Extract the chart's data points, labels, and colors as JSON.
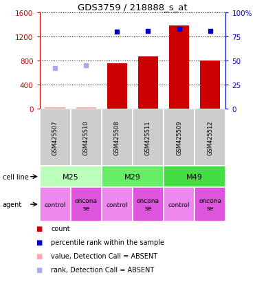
{
  "title": "GDS3759 / 218888_s_at",
  "samples": [
    "GSM425507",
    "GSM425510",
    "GSM425508",
    "GSM425511",
    "GSM425509",
    "GSM425512"
  ],
  "bar_values": [
    28,
    22,
    750,
    870,
    1380,
    800
  ],
  "bar_absent": [
    true,
    true,
    false,
    false,
    false,
    false
  ],
  "dot_values": [
    null,
    null,
    1280,
    1290,
    1320,
    1285
  ],
  "dot_absent_values": [
    680,
    720,
    null,
    null,
    null,
    null
  ],
  "ylim_left": [
    0,
    1600
  ],
  "ylim_right": [
    0,
    100
  ],
  "yticks_left": [
    0,
    400,
    800,
    1200,
    1600
  ],
  "yticks_right": [
    0,
    25,
    50,
    75,
    100
  ],
  "yticklabels_right": [
    "0",
    "25",
    "50",
    "75",
    "100%"
  ],
  "bar_color": "#cc0000",
  "bar_absent_color": "#ffaaaa",
  "dot_color": "#0000cc",
  "dot_absent_color": "#aaaaee",
  "cell_lines": [
    {
      "label": "M25",
      "start": 0,
      "end": 2,
      "color": "#bbffbb"
    },
    {
      "label": "M29",
      "start": 2,
      "end": 4,
      "color": "#66ee66"
    },
    {
      "label": "M49",
      "start": 4,
      "end": 6,
      "color": "#44dd44"
    }
  ],
  "agents": [
    {
      "label": "control",
      "color": "#ee88ee"
    },
    {
      "label": "oncona\nse",
      "color": "#dd55dd"
    },
    {
      "label": "control",
      "color": "#ee88ee"
    },
    {
      "label": "oncona\nse",
      "color": "#dd55dd"
    },
    {
      "label": "control",
      "color": "#ee88ee"
    },
    {
      "label": "oncona\nse",
      "color": "#dd55dd"
    }
  ],
  "legend_items": [
    {
      "label": "count",
      "color": "#cc0000"
    },
    {
      "label": "percentile rank within the sample",
      "color": "#0000cc"
    },
    {
      "label": "value, Detection Call = ABSENT",
      "color": "#ffaaaa"
    },
    {
      "label": "rank, Detection Call = ABSENT",
      "color": "#aaaaee"
    }
  ],
  "bg_color": "#ffffff",
  "left_tick_color": "#cc0000",
  "right_tick_color": "#0000cc",
  "sample_box_color": "#cccccc",
  "grid_linestyle": ":",
  "grid_color": "#000000",
  "grid_linewidth": 0.7
}
